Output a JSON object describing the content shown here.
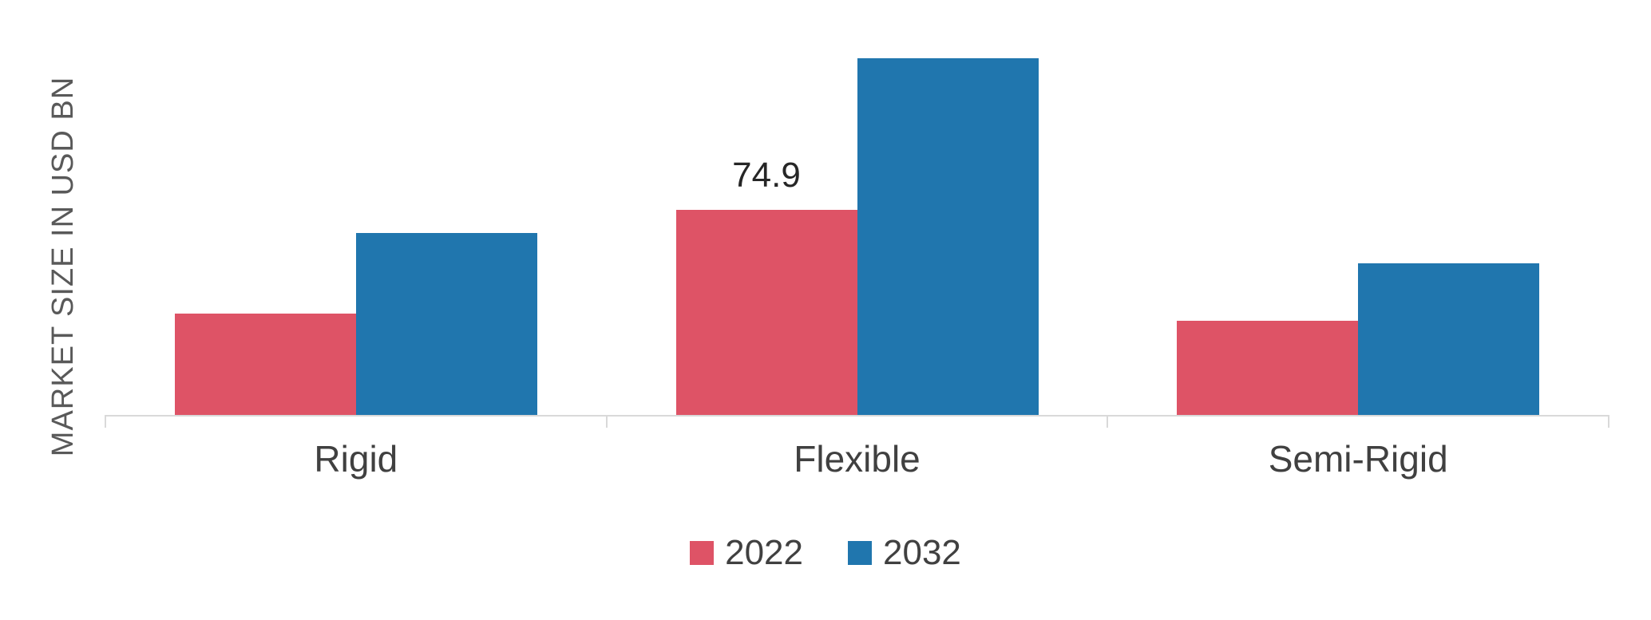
{
  "chart_data": {
    "type": "bar",
    "title": "",
    "xlabel": "",
    "ylabel": "MARKET SIZE IN USD BN",
    "categories": [
      "Rigid",
      "Flexible",
      "Semi-Rigid"
    ],
    "series": [
      {
        "name": "2022",
        "color": "#de5366",
        "values": [
          37,
          74.9,
          34.5
        ]
      },
      {
        "name": "2032",
        "color": "#2076ae",
        "values": [
          66.5,
          130.5,
          55.5
        ]
      }
    ],
    "ylim": [
      0,
      140
    ],
    "grid": false,
    "legend_position": "bottom",
    "axis_color": "#d9d9d9",
    "data_labels": [
      {
        "series": "2022",
        "category": "Flexible",
        "text": "74.9"
      }
    ]
  }
}
